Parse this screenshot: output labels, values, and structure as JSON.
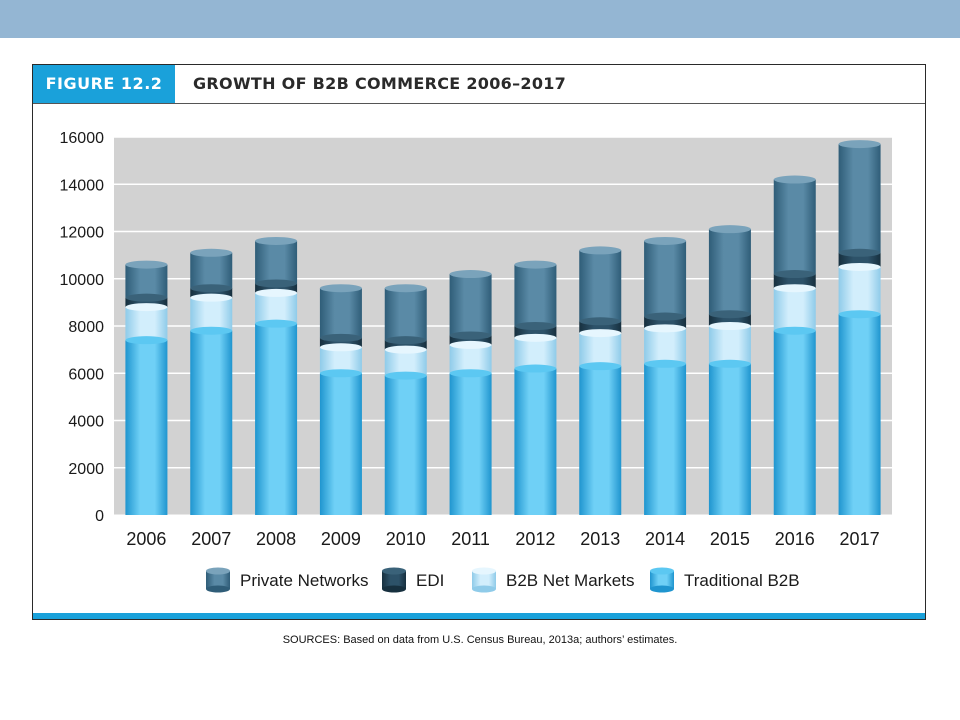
{
  "figure": {
    "tag": "FIGURE 12.2",
    "title": "GROWTH OF B2B COMMERCE 2006–2017",
    "source": "SOURCES: Based on data from U.S. Census Bureau, 2013a; authors’ estimates."
  },
  "colors": {
    "band": "#94b6d3",
    "accent": "#1aa1da",
    "plot_bg": "#d2d2d2",
    "grid": "#ffffff"
  },
  "chart_data": {
    "type": "bar",
    "stacked": true,
    "title": "",
    "xlabel": "",
    "ylabel": "",
    "ylim": [
      0,
      16000
    ],
    "yticks": [
      0,
      2000,
      4000,
      6000,
      8000,
      10000,
      12000,
      14000,
      16000
    ],
    "grid": true,
    "legend_position": "bottom",
    "categories": [
      "2006",
      "2007",
      "2008",
      "2009",
      "2010",
      "2011",
      "2012",
      "2013",
      "2014",
      "2015",
      "2016",
      "2017"
    ],
    "series": [
      {
        "name": "Traditional B2B",
        "color_top": "#5cc8f2",
        "color_light": "#6fd0f6",
        "color_dark": "#1f95cf",
        "values": [
          7400,
          7800,
          8100,
          6000,
          5900,
          6000,
          6200,
          6300,
          6400,
          6400,
          7800,
          8500
        ]
      },
      {
        "name": "B2B Net Markets",
        "color_top": "#e6f6fe",
        "color_light": "#d2eefc",
        "color_dark": "#8fcbe9",
        "values": [
          1400,
          1400,
          1300,
          1100,
          1100,
          1200,
          1300,
          1400,
          1500,
          1600,
          1800,
          2000
        ]
      },
      {
        "name": "EDI",
        "color_top": "#3a6279",
        "color_light": "#2d5269",
        "color_dark": "#17303f",
        "values": [
          400,
          400,
          400,
          400,
          400,
          400,
          500,
          500,
          500,
          500,
          600,
          600
        ]
      },
      {
        "name": "Private Networks",
        "color_top": "#7aa3bb",
        "color_light": "#5a8aa6",
        "color_dark": "#2f5d78",
        "values": [
          1400,
          1500,
          1800,
          2100,
          2200,
          2600,
          2600,
          3000,
          3200,
          3600,
          4000,
          4600
        ]
      }
    ],
    "legend_order": [
      "Private Networks",
      "EDI",
      "B2B Net Markets",
      "Traditional B2B"
    ]
  }
}
